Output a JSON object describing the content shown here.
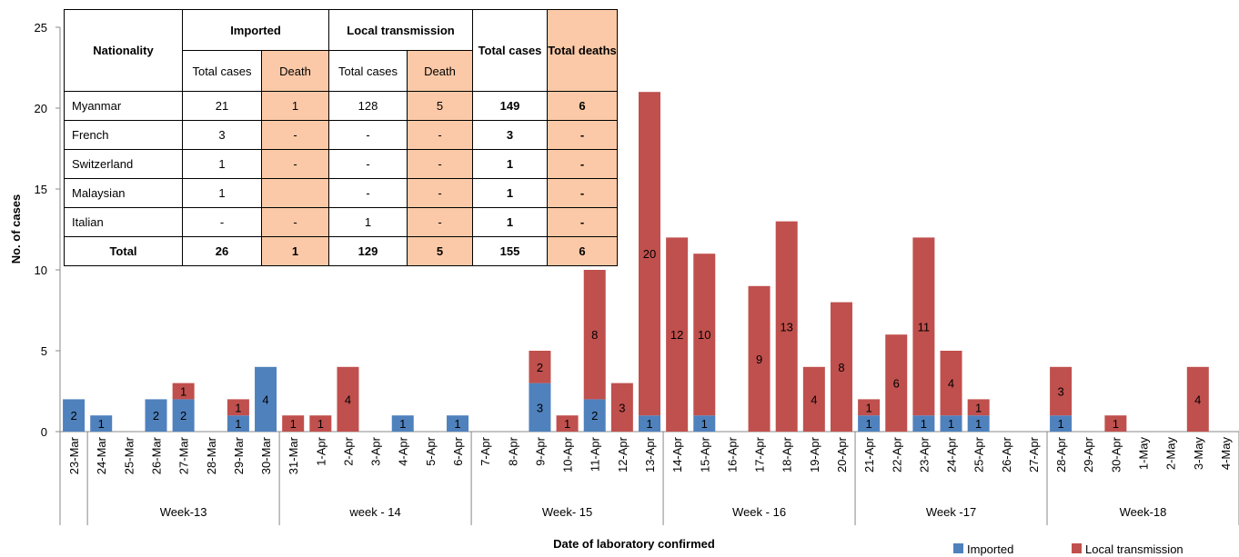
{
  "chart_data": {
    "type": "bar",
    "stacked": true,
    "y_label": "No. of cases",
    "x_label": "Date of laboratory confirmed",
    "categories": [
      "23-Mar",
      "24-Mar",
      "25-Mar",
      "26-Mar",
      "27-Mar",
      "28-Mar",
      "29-Mar",
      "30-Mar",
      "31-Mar",
      "1-Apr",
      "2-Apr",
      "3-Apr",
      "4-Apr",
      "5-Apr",
      "6-Apr",
      "7-Apr",
      "8-Apr",
      "9-Apr",
      "10-Apr",
      "11-Apr",
      "12-Apr",
      "13-Apr",
      "14-Apr",
      "15-Apr",
      "16-Apr",
      "17-Apr",
      "18-Apr",
      "19-Apr",
      "20-Apr",
      "21-Apr",
      "22-Apr",
      "23-Apr",
      "24-Apr",
      "25-Apr",
      "26-Apr",
      "27-Apr",
      "28-Apr",
      "29-Apr",
      "30-Apr",
      "1-May",
      "2-May",
      "3-May",
      "4-May"
    ],
    "series": [
      {
        "name": "Imported",
        "color": "#4f81bd",
        "values": [
          2,
          1,
          0,
          2,
          2,
          0,
          1,
          4,
          0,
          0,
          0,
          0,
          1,
          0,
          1,
          0,
          0,
          3,
          0,
          2,
          0,
          1,
          0,
          1,
          0,
          0,
          0,
          0,
          0,
          1,
          0,
          1,
          1,
          1,
          0,
          0,
          1,
          0,
          0,
          0,
          0,
          0,
          0
        ]
      },
      {
        "name": "Local transmission",
        "color": "#c0504d",
        "values": [
          0,
          0,
          0,
          0,
          1,
          0,
          1,
          0,
          1,
          1,
          4,
          0,
          0,
          0,
          0,
          0,
          0,
          2,
          1,
          8,
          3,
          20,
          12,
          10,
          0,
          9,
          13,
          4,
          8,
          1,
          6,
          11,
          4,
          1,
          0,
          0,
          3,
          0,
          1,
          0,
          0,
          4,
          0
        ]
      }
    ],
    "weeks": [
      "Week-13",
      "week - 14",
      "Week- 15",
      "Week - 16",
      "Week -17",
      "Week-18"
    ],
    "ylim": [
      0,
      25
    ],
    "yticks": [
      0,
      5,
      10,
      15,
      20,
      25
    ],
    "legend": "bottom-right"
  },
  "table": {
    "headers": {
      "nationality": "Nationality",
      "imported": "Imported",
      "local": "Local transmission",
      "total_cases": "Total cases",
      "total_deaths": "Total deaths",
      "cases": "Total cases",
      "death": "Death"
    },
    "rows": [
      [
        "Myanmar",
        "21",
        "1",
        "128",
        "5",
        "149",
        "6"
      ],
      [
        "French",
        "3",
        "-",
        "-",
        "-",
        "3",
        "-"
      ],
      [
        "Switzerland",
        "1",
        "-",
        "-",
        "-",
        "1",
        "-"
      ],
      [
        "Malaysian",
        "1",
        null,
        "-",
        "-",
        "1",
        "-"
      ],
      [
        "Italian",
        "-",
        "-",
        "1",
        "-",
        "1",
        "-"
      ],
      [
        "Total",
        "26",
        "1",
        "129",
        "5",
        "155",
        "6"
      ]
    ]
  }
}
